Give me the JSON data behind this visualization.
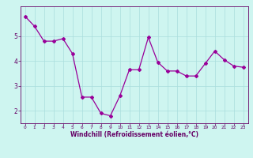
{
  "x": [
    0,
    1,
    2,
    3,
    4,
    5,
    6,
    7,
    8,
    9,
    10,
    11,
    12,
    13,
    14,
    15,
    16,
    17,
    18,
    19,
    20,
    21,
    22,
    23
  ],
  "y": [
    5.8,
    5.4,
    4.8,
    4.8,
    4.9,
    4.3,
    2.55,
    2.55,
    1.9,
    1.8,
    2.6,
    3.65,
    3.65,
    4.95,
    3.95,
    3.6,
    3.6,
    3.4,
    3.4,
    3.9,
    4.4,
    4.05,
    3.8,
    3.75
  ],
  "line_color": "#990099",
  "marker": "D",
  "marker_size": 2.0,
  "bg_color": "#cef5f0",
  "grid_color": "#aadddd",
  "xlabel": "Windchill (Refroidissement éolien,°C)",
  "xlabel_color": "#660066",
  "tick_color": "#660066",
  "xlim": [
    -0.5,
    23.5
  ],
  "ylim": [
    1.5,
    6.2
  ],
  "yticks": [
    2,
    3,
    4,
    5
  ],
  "xticks": [
    0,
    1,
    2,
    3,
    4,
    5,
    6,
    7,
    8,
    9,
    10,
    11,
    12,
    13,
    14,
    15,
    16,
    17,
    18,
    19,
    20,
    21,
    22,
    23
  ],
  "spine_color": "#660066",
  "axis_bg_color": "#cef5f0",
  "line_width": 0.9,
  "xlabel_fontsize": 5.5,
  "xlabel_fontweight": "bold",
  "ytick_fontsize": 5.5,
  "xtick_fontsize": 4.2
}
